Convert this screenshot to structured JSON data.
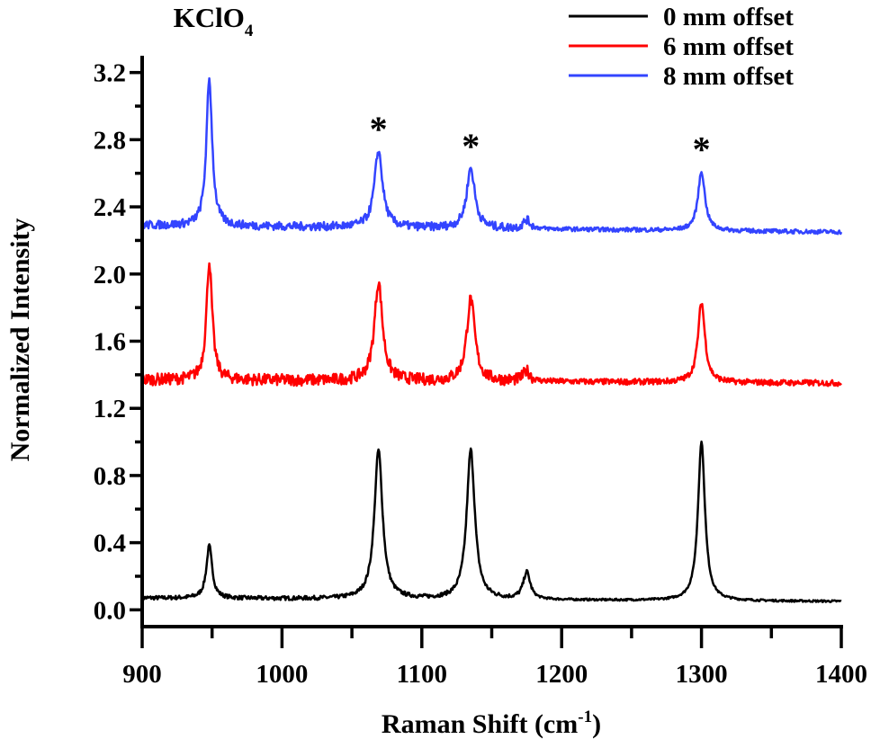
{
  "chart_data": {
    "type": "line",
    "title": "",
    "xlabel": "Raman Shift (cm",
    "xlabel_sup": "-1",
    "xlabel_close": ")",
    "ylabel": "Normalized Intensity",
    "xlim": [
      900,
      1400
    ],
    "ylim": [
      -0.1,
      3.3
    ],
    "xticks": [
      900,
      1000,
      1100,
      1200,
      1300,
      1400
    ],
    "yticks": [
      "0.0",
      "0.4",
      "0.8",
      "1.2",
      "1.6",
      "2.0",
      "2.4",
      "2.8",
      "3.2"
    ],
    "grid": false,
    "legend_position": "top-right",
    "series": [
      {
        "name": "0 mm offset",
        "color": "#000000",
        "baseline_start": 0.07,
        "baseline_end": 0.05,
        "noise": 0.012,
        "peaks": [
          {
            "x": 948,
            "y": 0.38,
            "fwhm": 5
          },
          {
            "x": 1069,
            "y": 0.95,
            "fwhm": 7
          },
          {
            "x": 1135,
            "y": 0.95,
            "fwhm": 7
          },
          {
            "x": 1175,
            "y": 0.22,
            "fwhm": 6
          },
          {
            "x": 1300,
            "y": 1.0,
            "fwhm": 6
          }
        ]
      },
      {
        "name": "6 mm offset",
        "color": "#ff0000",
        "baseline_start": 1.37,
        "baseline_end": 1.35,
        "noise": 0.035,
        "peaks": [
          {
            "x": 948,
            "y": 2.07,
            "fwhm": 5
          },
          {
            "x": 1069,
            "y": 1.95,
            "fwhm": 7
          },
          {
            "x": 1135,
            "y": 1.85,
            "fwhm": 7
          },
          {
            "x": 1175,
            "y": 1.42,
            "fwhm": 6
          },
          {
            "x": 1300,
            "y": 1.83,
            "fwhm": 6
          }
        ]
      },
      {
        "name": "8 mm offset",
        "color": "#3344ff",
        "baseline_start": 2.29,
        "baseline_end": 2.25,
        "noise": 0.025,
        "peaks": [
          {
            "x": 948,
            "y": 3.16,
            "fwhm": 5
          },
          {
            "x": 1069,
            "y": 2.73,
            "fwhm": 7
          },
          {
            "x": 1135,
            "y": 2.63,
            "fwhm": 7
          },
          {
            "x": 1175,
            "y": 2.32,
            "fwhm": 6
          },
          {
            "x": 1300,
            "y": 2.61,
            "fwhm": 6
          }
        ]
      }
    ],
    "annotations": [
      {
        "text": "KClO",
        "sub": "4",
        "x": 948,
        "y": 3.2
      },
      {
        "text": "*",
        "x": 1069,
        "y": 2.78
      },
      {
        "text": "*",
        "x": 1135,
        "y": 2.68
      },
      {
        "text": "*",
        "x": 1300,
        "y": 2.66
      }
    ]
  }
}
